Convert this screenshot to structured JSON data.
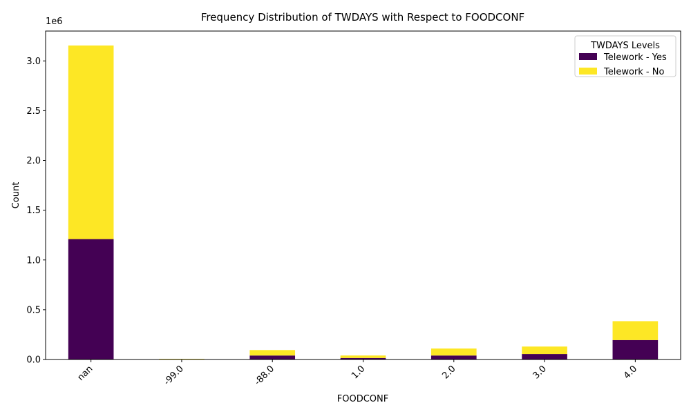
{
  "chart_data": {
    "type": "bar",
    "stacked": true,
    "title": "Frequency Distribution of TWDAYS with Respect to FOODCONF",
    "xlabel": "FOODCONF",
    "ylabel": "Count",
    "y_offset_label": "1e6",
    "y_scale": 1000000,
    "categories": [
      "nan",
      "-99.0",
      "-88.0",
      "1.0",
      "2.0",
      "3.0",
      "4.0"
    ],
    "series": [
      {
        "name": "Telework - Yes",
        "color": "#440154",
        "values": [
          1210000,
          4000,
          40000,
          15000,
          40000,
          55000,
          195000
        ]
      },
      {
        "name": "Telework - No",
        "color": "#fde725",
        "values": [
          1945000,
          3000,
          55000,
          25000,
          70000,
          75000,
          190000
        ]
      }
    ],
    "ylim": [
      0,
      3300000
    ],
    "yticks": [
      0,
      500000,
      1000000,
      1500000,
      2000000,
      2500000,
      3000000
    ],
    "ytick_labels": [
      "0.0",
      "0.5",
      "1.0",
      "1.5",
      "2.0",
      "2.5",
      "3.0"
    ],
    "legend": {
      "title": "TWDAYS Levels",
      "position": "top-right"
    },
    "grid": false
  }
}
